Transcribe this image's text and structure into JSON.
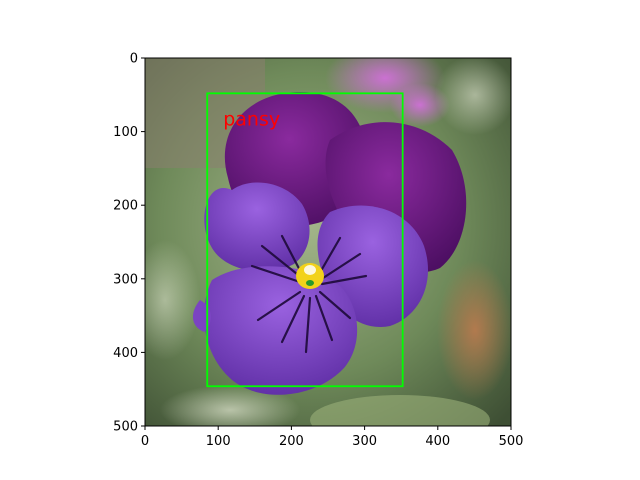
{
  "figure": {
    "image_subject": "purple pansy flower photo",
    "x_ticks": [
      "0",
      "100",
      "200",
      "300",
      "400",
      "500"
    ],
    "y_ticks": [
      "0",
      "100",
      "200",
      "300",
      "400",
      "500"
    ],
    "x_range": [
      0,
      500
    ],
    "y_range": [
      0,
      500
    ]
  },
  "detection": {
    "label": "pansy",
    "box_color": "#00ff00",
    "label_color": "#ff0000",
    "box": {
      "x_min": 85,
      "y_min": 48,
      "x_max": 352,
      "y_max": 446
    }
  },
  "colors": {
    "petal_upper": "#6b1a86",
    "petal_lower": "#7b3fc6",
    "center": "#f2d21a",
    "background": "#6f8a5a"
  }
}
